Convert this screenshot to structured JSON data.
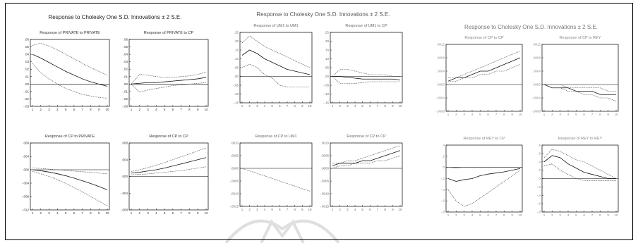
{
  "colors": {
    "line": "#111111",
    "band": "#444444",
    "zero": "#000000"
  },
  "groups": [
    {
      "title": "Response to Cholesky One S.D. Innovations ± 2 S.E.",
      "panels": [
        {
          "title": "Response of PRIVATE to PRIVATE"
        },
        {
          "title": "Response of PRIVATE to CP"
        },
        {
          "title": "Response of CP to PRIVATE"
        },
        {
          "title": "Response of CP to CP"
        }
      ]
    },
    {
      "title": "Response to Cholesky One S.D. Innovations ± 2 S.E.",
      "panels": [
        {
          "title": "Response of UM1 to UM1"
        },
        {
          "title": "Response of UM1 to CP"
        },
        {
          "title": "Response of CP to UM1"
        },
        {
          "title": "Response of CP to CP"
        }
      ]
    },
    {
      "title": "Response to Cholesky One S.D. Innovations ± 2 S.E.",
      "panels": [
        {
          "title": "Response of CP to CP"
        },
        {
          "title": "Response of CP to REY"
        },
        {
          "title": "Response of REY to CP"
        },
        {
          "title": "Response of REY to REY"
        }
      ]
    }
  ],
  "chart_data": [
    {
      "type": "line",
      "title": "Response of PRIVATE to PRIVATE",
      "x": [
        1,
        2,
        3,
        4,
        5,
        6,
        7,
        8,
        9,
        10
      ],
      "ylim": [
        -0.03,
        0.06
      ],
      "yticks": [
        ".06",
        ".05",
        ".04",
        ".03",
        ".02",
        ".01",
        ".00",
        "-.01",
        "-.02",
        "-.03"
      ],
      "series": [
        {
          "role": "upper",
          "values": [
            0.052,
            0.055,
            0.051,
            0.046,
            0.04,
            0.034,
            0.028,
            0.022,
            0.017,
            0.012
          ]
        },
        {
          "role": "response",
          "values": [
            0.04,
            0.035,
            0.029,
            0.023,
            0.017,
            0.012,
            0.007,
            0.003,
            0.0,
            -0.003
          ]
        },
        {
          "role": "lower",
          "values": [
            0.028,
            0.015,
            0.007,
            0.0,
            -0.006,
            -0.01,
            -0.014,
            -0.016,
            -0.018,
            -0.019
          ]
        }
      ]
    },
    {
      "type": "line",
      "title": "Response of PRIVATE to CP",
      "x": [
        1,
        2,
        3,
        4,
        5,
        6,
        7,
        8,
        9,
        10
      ],
      "ylim": [
        -0.03,
        0.06
      ],
      "yticks": [
        ".06",
        ".05",
        ".04",
        ".03",
        ".02",
        ".01",
        ".00",
        "-.01",
        "-.02",
        "-.03"
      ],
      "series": [
        {
          "role": "upper",
          "values": [
            0.0,
            0.013,
            0.012,
            0.01,
            0.009,
            0.009,
            0.01,
            0.011,
            0.013,
            0.016
          ]
        },
        {
          "role": "response",
          "values": [
            0.0,
            0.001,
            0.002,
            0.002,
            0.003,
            0.004,
            0.005,
            0.006,
            0.007,
            0.009
          ]
        },
        {
          "role": "lower",
          "values": [
            0.0,
            -0.011,
            -0.008,
            -0.006,
            -0.004,
            -0.002,
            -0.001,
            0.0,
            0.001,
            0.002
          ]
        }
      ]
    },
    {
      "type": "line",
      "title": "Response of CP to PRIVATE",
      "x": [
        1,
        2,
        3,
        4,
        5,
        6,
        7,
        8,
        9,
        10
      ],
      "ylim": [
        -0.012,
        0.008
      ],
      "yticks": [
        ".008",
        ".004",
        ".000",
        "-.004",
        "-.008",
        "-.012"
      ],
      "series": [
        {
          "role": "upper",
          "values": [
            0.0005,
            0.0004,
            0.0002,
            0.0,
            -0.0002,
            -0.0004,
            -0.0006,
            -0.0008,
            -0.001,
            -0.0012
          ]
        },
        {
          "role": "response",
          "values": [
            0.0,
            -0.0003,
            -0.0007,
            -0.0012,
            -0.0018,
            -0.0025,
            -0.0033,
            -0.0041,
            -0.005,
            -0.006
          ]
        },
        {
          "role": "lower",
          "values": [
            -0.0005,
            -0.0012,
            -0.002,
            -0.003,
            -0.0041,
            -0.0053,
            -0.0066,
            -0.008,
            -0.0094,
            -0.0108
          ]
        }
      ]
    },
    {
      "type": "line",
      "title": "Response of CP to CP",
      "x": [
        1,
        2,
        3,
        4,
        5,
        6,
        7,
        8,
        9,
        10
      ],
      "ylim": [
        -0.008,
        0.008
      ],
      "yticks": [
        ".008",
        ".004",
        ".000",
        "-.004",
        "-.008"
      ],
      "series": [
        {
          "role": "upper",
          "values": [
            0.0012,
            0.0016,
            0.0021,
            0.0027,
            0.0033,
            0.004,
            0.0047,
            0.0054,
            0.0061,
            0.0068
          ]
        },
        {
          "role": "response",
          "values": [
            0.0008,
            0.001,
            0.0013,
            0.0016,
            0.002,
            0.0025,
            0.003,
            0.0035,
            0.004,
            0.0045
          ]
        },
        {
          "role": "lower",
          "values": [
            0.0004,
            0.0005,
            0.0006,
            0.0008,
            0.001,
            0.0012,
            0.0014,
            0.0017,
            0.002,
            0.0023
          ]
        }
      ]
    },
    {
      "type": "line",
      "title": "Response of UM1 to UM1",
      "x": [
        1,
        2,
        3,
        4,
        5,
        6,
        7,
        8,
        9,
        10
      ],
      "ylim": [
        -0.15,
        0.25
      ],
      "yticks": [
        ".25",
        ".20",
        ".15",
        ".10",
        ".05",
        ".00",
        "-.05",
        "-.10",
        "-.15"
      ],
      "series": [
        {
          "role": "upper",
          "values": [
            0.19,
            0.23,
            0.2,
            0.17,
            0.15,
            0.13,
            0.11,
            0.09,
            0.07,
            0.05
          ]
        },
        {
          "role": "response",
          "values": [
            0.12,
            0.15,
            0.13,
            0.1,
            0.08,
            0.06,
            0.04,
            0.03,
            0.02,
            0.01
          ]
        },
        {
          "role": "lower",
          "values": [
            0.05,
            0.07,
            0.05,
            0.01,
            -0.01,
            -0.05,
            -0.06,
            -0.06,
            -0.06,
            -0.06
          ]
        }
      ]
    },
    {
      "type": "line",
      "title": "Response of UM1 to CP",
      "x": [
        1,
        2,
        3,
        4,
        5,
        6,
        7,
        8,
        9,
        10
      ],
      "ylim": [
        -0.15,
        0.25
      ],
      "yticks": [
        ".25",
        ".20",
        ".15",
        ".10",
        ".05",
        ".00",
        "-.05",
        "-.10",
        "-.15"
      ],
      "series": [
        {
          "role": "upper",
          "values": [
            0.0,
            0.04,
            0.04,
            0.03,
            0.02,
            0.01,
            0.01,
            0.01,
            0.0,
            0.0
          ]
        },
        {
          "role": "response",
          "values": [
            0.0,
            0.0,
            -0.005,
            -0.01,
            -0.015,
            -0.015,
            -0.015,
            -0.015,
            -0.015,
            -0.02
          ]
        },
        {
          "role": "lower",
          "values": [
            0.0,
            -0.04,
            -0.04,
            -0.04,
            -0.035,
            -0.03,
            -0.03,
            -0.03,
            -0.03,
            -0.03
          ]
        }
      ]
    },
    {
      "type": "line",
      "title": "Response of CP to UM1",
      "x": [
        1,
        2,
        3,
        4,
        5,
        6,
        7,
        8,
        9,
        10
      ],
      "ylim": [
        -0.0015,
        0.001
      ],
      "yticks": [
        ".0010",
        ".0005",
        ".0000",
        "-.0005",
        "-.0010",
        "-.0015"
      ],
      "series": [
        {
          "role": "upper",
          "values": [
            0.0,
            -0.0001,
            -0.0002,
            -0.0003,
            -0.0004,
            -0.0005,
            -0.0006,
            -0.0007,
            -0.0008,
            -0.0009
          ]
        }
      ]
    },
    {
      "type": "line",
      "title": "Response of CP to CP",
      "x": [
        1,
        2,
        3,
        4,
        5,
        6,
        7,
        8,
        9,
        10
      ],
      "ylim": [
        -0.0015,
        0.001
      ],
      "yticks": [
        ".0010",
        ".0005",
        ".0000",
        "-.0005",
        "-.0010",
        "-.0015"
      ],
      "series": [
        {
          "role": "upper",
          "values": [
            0.0002,
            0.0002,
            0.0003,
            0.0003,
            0.0004,
            0.0005,
            0.0006,
            0.0007,
            0.0008,
            0.0009
          ]
        },
        {
          "role": "response",
          "values": [
            0.0001,
            0.0002,
            0.0002,
            0.0002,
            0.0003,
            0.0003,
            0.0004,
            0.0005,
            0.0006,
            0.0007
          ]
        },
        {
          "role": "lower",
          "values": [
            0.0,
            0.0001,
            0.0001,
            0.0002,
            0.0002,
            0.0002,
            0.0003,
            0.0003,
            0.0004,
            0.0005
          ]
        }
      ]
    },
    {
      "type": "line",
      "title": "Response of CP to CP",
      "x": [
        1,
        2,
        3,
        4,
        5,
        6,
        7,
        8,
        9,
        10
      ],
      "ylim": [
        -0.0008,
        0.0012
      ],
      "yticks": [
        ".0012",
        ".0008",
        ".0004",
        ".0000",
        "-.0004",
        "-.0008"
      ],
      "series": [
        {
          "role": "upper",
          "values": [
            0.0002,
            0.0002,
            0.0003,
            0.0004,
            0.0005,
            0.0006,
            0.0007,
            0.0008,
            0.0009,
            0.001
          ]
        },
        {
          "role": "response",
          "values": [
            0.0001,
            0.0002,
            0.0002,
            0.0003,
            0.0004,
            0.0004,
            0.0005,
            0.0006,
            0.0007,
            0.0008
          ]
        },
        {
          "role": "lower",
          "values": [
            0.0001,
            0.0001,
            0.0002,
            0.0002,
            0.0003,
            0.0003,
            0.0004,
            0.0004,
            0.0005,
            0.0006
          ]
        }
      ]
    },
    {
      "type": "line",
      "title": "Response of CP to REY",
      "x": [
        1,
        2,
        3,
        4,
        5,
        6,
        7,
        8,
        9,
        10
      ],
      "ylim": [
        -0.0008,
        0.0012
      ],
      "yticks": [
        ".0012",
        ".0008",
        ".0004",
        ".0000",
        "-.0004",
        "-.0008"
      ],
      "series": [
        {
          "role": "upper",
          "values": [
            0.0,
            0.0,
            0.0,
            -0.0001,
            -0.0001,
            -0.0001,
            -0.0001,
            -0.0001,
            -0.0002,
            -0.0002
          ]
        },
        {
          "role": "response",
          "values": [
            0.0,
            -0.0001,
            -0.0001,
            -0.0001,
            -0.0002,
            -0.0002,
            -0.0002,
            -0.0003,
            -0.0003,
            -0.0003
          ]
        },
        {
          "role": "lower",
          "values": [
            0.0,
            -0.0001,
            -0.0001,
            -0.0002,
            -0.0002,
            -0.0003,
            -0.0003,
            -0.0004,
            -0.0004,
            -0.0005
          ]
        }
      ]
    },
    {
      "type": "line",
      "title": "Response of REY to CP",
      "x": [
        1,
        2,
        3,
        4,
        5,
        6,
        7,
        8,
        9,
        10
      ],
      "ylim": [
        -0.8,
        0.4
      ],
      "yticks": [
        ".4",
        ".2",
        ".0",
        "-.2",
        "-.4",
        "-.6",
        "-.8"
      ],
      "series": [
        {
          "role": "upper",
          "values": [
            0.0,
            -0.01,
            0.0,
            0.0,
            0.0,
            0.0,
            0.0,
            0.0,
            0.0,
            0.0
          ]
        },
        {
          "role": "response",
          "values": [
            -0.2,
            -0.25,
            -0.22,
            -0.2,
            -0.15,
            -0.12,
            -0.1,
            -0.08,
            -0.05,
            -0.02
          ]
        },
        {
          "role": "lower",
          "values": [
            -0.4,
            -0.6,
            -0.7,
            -0.65,
            -0.55,
            -0.45,
            -0.35,
            -0.25,
            -0.15,
            -0.05
          ]
        }
      ]
    },
    {
      "type": "line",
      "title": "Response of REY to REY",
      "x": [
        1,
        2,
        3,
        4,
        5,
        6,
        7,
        8,
        9,
        10
      ],
      "ylim": [
        -0.8,
        0.8
      ],
      "yticks": [
        ".8",
        ".6",
        ".4",
        ".2",
        ".0",
        "-.2",
        "-.4",
        "-.6",
        "-.8"
      ],
      "series": [
        {
          "role": "upper",
          "values": [
            0.5,
            0.7,
            0.65,
            0.55,
            0.45,
            0.4,
            0.3,
            0.2,
            0.1,
            0.0
          ]
        },
        {
          "role": "response",
          "values": [
            0.4,
            0.55,
            0.5,
            0.35,
            0.25,
            0.15,
            0.1,
            0.05,
            0.0,
            0.0
          ]
        },
        {
          "role": "lower",
          "values": [
            0.3,
            0.35,
            0.2,
            0.1,
            0.0,
            -0.05,
            -0.05,
            -0.05,
            -0.05,
            -0.05
          ]
        }
      ]
    }
  ]
}
